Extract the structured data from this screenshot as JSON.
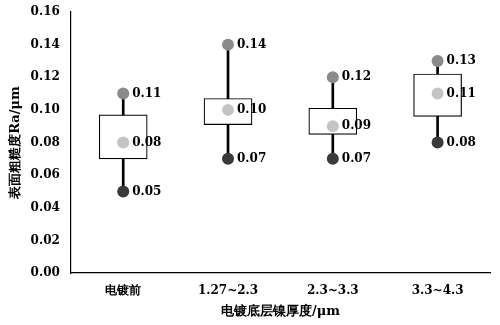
{
  "chart_data": {
    "type": "box",
    "xlabel": "电镀底层镍厚度/μm",
    "ylabel": "表面粗糙度Ra/μm",
    "categories": [
      "电镀前",
      "1.27~2.3",
      "2.3~3.3",
      "3.3~4.3"
    ],
    "ylim": [
      0,
      0.16
    ],
    "yticks": [
      {
        "value": 0,
        "label": "0.00"
      },
      {
        "value": 0.02,
        "label": "0.02"
      },
      {
        "value": 0.04,
        "label": "0.04"
      },
      {
        "value": 0.06,
        "label": "0.06"
      },
      {
        "value": 0.08,
        "label": "0.08"
      },
      {
        "value": 0.1,
        "label": "0.10"
      },
      {
        "value": 0.12,
        "label": "0.12"
      },
      {
        "value": 0.14,
        "label": "0.14"
      },
      {
        "value": 0.16,
        "label": "0.16"
      }
    ],
    "grid": false,
    "data_labels": true,
    "q1": [
      0.07,
      0.091,
      0.085,
      0.096
    ],
    "q3": [
      0.097,
      0.107,
      0.101,
      0.122
    ],
    "max": {
      "values": [
        0.11,
        0.14,
        0.12,
        0.13
      ],
      "value_labels": [
        "0.11",
        "0.14",
        "0.12",
        "0.13"
      ],
      "color": "#8a8a8a"
    },
    "mean": {
      "values": [
        0.08,
        0.1,
        0.09,
        0.11
      ],
      "value_labels": [
        "0.08",
        "0.10",
        "0.09",
        "0.11"
      ],
      "color": "#c4c4c4"
    },
    "min": {
      "values": [
        0.05,
        0.07,
        0.07,
        0.08
      ],
      "value_labels": [
        "0.05",
        "0.07",
        "0.07",
        "0.08"
      ],
      "color": "#3a3a3a"
    }
  }
}
